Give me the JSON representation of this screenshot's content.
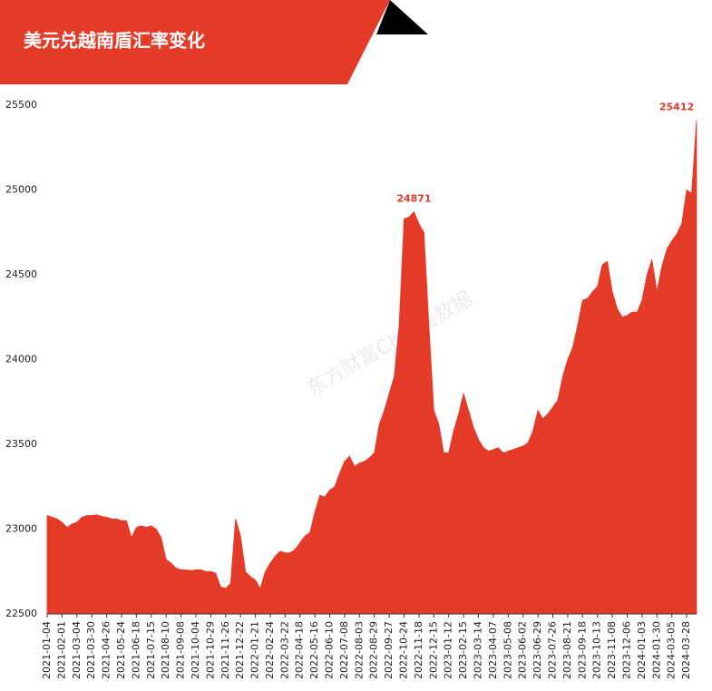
{
  "chart_data": {
    "type": "area",
    "title": "美元兑越南盾汇率变化",
    "watermark": "东方财富Choice数据",
    "color": "#e43a28",
    "categories": [
      "2021-01-04",
      null,
      null,
      "2021-02-01",
      null,
      null,
      "2021-03-04",
      null,
      null,
      "2021-03-30",
      null,
      null,
      "2021-04-26",
      null,
      null,
      "2021-05-24",
      null,
      null,
      "2021-06-18",
      null,
      null,
      "2021-07-15",
      null,
      null,
      "2021-08-10",
      null,
      null,
      "2021-09-08",
      null,
      null,
      "2021-10-04",
      null,
      null,
      "2021-10-29",
      null,
      null,
      "2021-11-26",
      null,
      null,
      "2021-12-22",
      null,
      null,
      "2022-01-21",
      null,
      null,
      "2022-02-24",
      null,
      null,
      "2022-03-22",
      null,
      null,
      "2022-04-18",
      null,
      null,
      "2022-05-16",
      null,
      null,
      "2022-06-10",
      null,
      null,
      "2022-07-08",
      null,
      null,
      "2022-08-03",
      null,
      null,
      "2022-08-29",
      null,
      null,
      "2022-09-27",
      null,
      null,
      "2022-10-24",
      null,
      null,
      "2022-11-18",
      null,
      null,
      "2022-12-15",
      null,
      null,
      "2023-01-12",
      null,
      null,
      "2023-02-15",
      null,
      null,
      "2023-03-14",
      null,
      null,
      "2023-04-07",
      null,
      null,
      "2023-05-08",
      null,
      null,
      "2023-06-02",
      null,
      null,
      "2023-06-29",
      null,
      null,
      "2023-07-26",
      null,
      null,
      "2023-08-21",
      null,
      null,
      "2023-09-18",
      null,
      null,
      "2023-10-13",
      null,
      null,
      "2023-11-08",
      null,
      null,
      "2023-12-06",
      null,
      null,
      "2024-01-03",
      null,
      null,
      "2024-01-30",
      null,
      null,
      "2024-03-05",
      null,
      null,
      "2024-03-28",
      null,
      null
    ],
    "values": [
      23080,
      23070,
      23060,
      23040,
      23010,
      23030,
      23040,
      23070,
      23080,
      23080,
      23085,
      23075,
      23070,
      23060,
      23060,
      23050,
      23050,
      22950,
      23010,
      23020,
      23010,
      23020,
      23000,
      22950,
      22820,
      22800,
      22770,
      22760,
      22760,
      22755,
      22760,
      22760,
      22750,
      22750,
      22740,
      22660,
      22650,
      22680,
      23060,
      22960,
      22750,
      22720,
      22700,
      22650,
      22750,
      22800,
      22840,
      22870,
      22860,
      22860,
      22880,
      22920,
      22960,
      22980,
      23100,
      23200,
      23190,
      23230,
      23250,
      23330,
      23400,
      23430,
      23370,
      23390,
      23400,
      23420,
      23450,
      23620,
      23700,
      23800,
      23900,
      24200,
      24830,
      24840,
      24871,
      24800,
      24750,
      24200,
      23700,
      23620,
      23450,
      23450,
      23580,
      23680,
      23800,
      23700,
      23600,
      23530,
      23480,
      23460,
      23470,
      23480,
      23450,
      23460,
      23470,
      23480,
      23490,
      23510,
      23580,
      23700,
      23650,
      23680,
      23720,
      23760,
      23900,
      24000,
      24070,
      24200,
      24350,
      24360,
      24400,
      24430,
      24560,
      24580,
      24400,
      24300,
      24250,
      24260,
      24280,
      24280,
      24350,
      24500,
      24590,
      24400,
      24550,
      24650,
      24700,
      24740,
      24800,
      25000,
      24980,
      25412
    ],
    "value_labels": [
      null,
      null,
      null,
      null,
      null,
      null,
      null,
      null,
      null,
      null,
      null,
      null,
      null,
      null,
      null,
      null,
      null,
      null,
      null,
      null,
      null,
      null,
      null,
      null,
      null,
      null,
      null,
      null,
      null,
      null,
      null,
      null,
      null,
      null,
      null,
      null,
      null,
      null,
      null,
      null,
      null,
      null,
      null,
      null,
      null,
      null,
      null,
      null,
      null,
      null,
      null,
      null,
      null,
      null,
      null,
      null,
      null,
      null,
      null,
      null,
      null,
      null,
      null,
      null,
      null,
      null,
      null,
      null,
      null,
      null,
      null,
      null,
      null,
      null,
      "24871",
      null,
      null,
      null,
      null,
      null,
      null,
      null,
      null,
      null,
      null,
      null,
      null,
      null,
      null,
      null,
      null,
      null,
      null,
      null,
      null,
      null,
      null,
      null,
      null,
      null,
      null,
      null,
      null,
      null,
      null,
      null,
      null,
      null,
      null,
      null,
      null,
      null,
      null,
      null,
      null,
      null,
      null,
      null,
      null,
      null,
      null,
      null,
      null,
      null,
      null,
      null,
      null,
      null,
      null,
      null,
      null,
      "25412"
    ],
    "ylim": [
      22500,
      25500
    ],
    "yticks": [
      22500,
      23000,
      23500,
      24000,
      24500,
      25000,
      25500
    ]
  }
}
